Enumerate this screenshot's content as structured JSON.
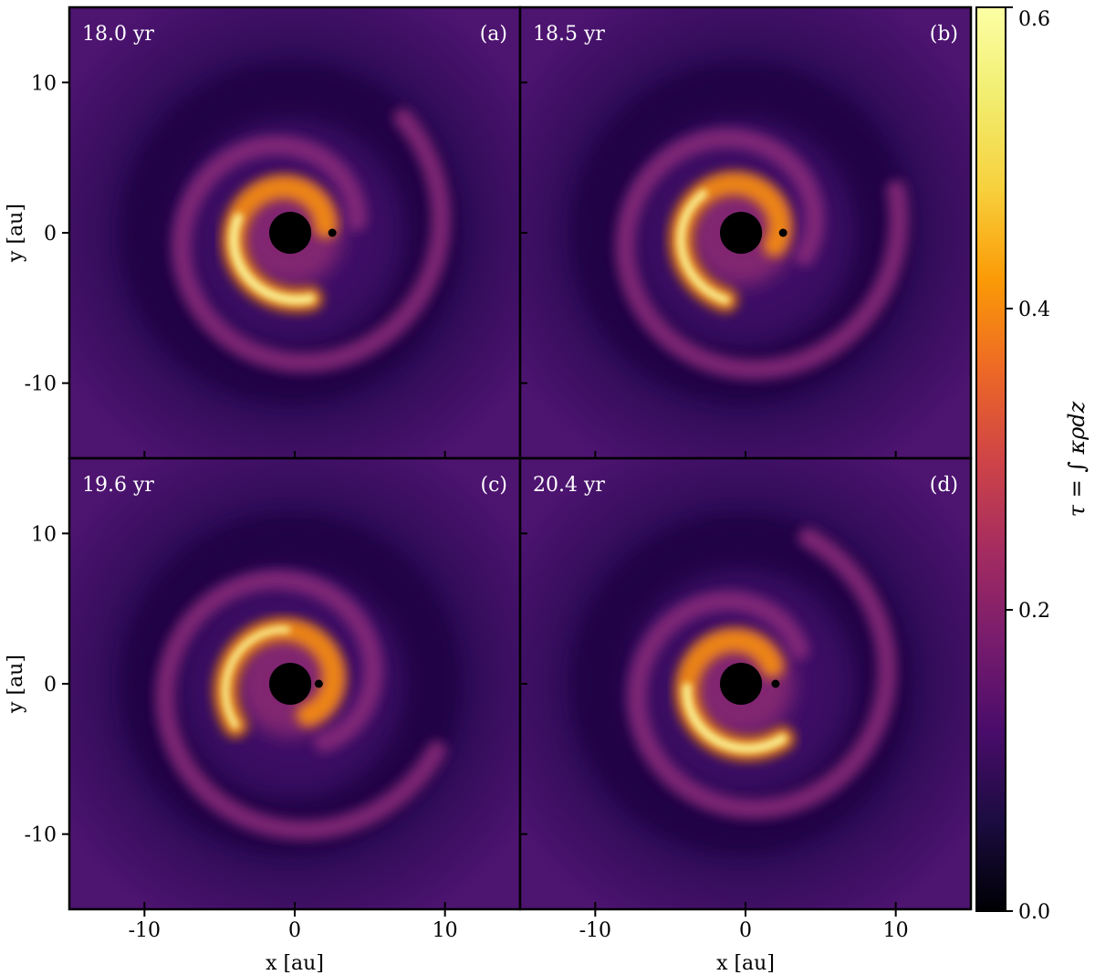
{
  "chart_data": {
    "type": "heatmap",
    "colormap": "inferno",
    "xlabel": "x [au]",
    "ylabel": "y [au]",
    "xlim": [
      -15,
      15
    ],
    "ylim": [
      -15,
      15
    ],
    "x_ticks": [
      -10,
      0,
      10
    ],
    "x_tick_labels": [
      "-10",
      "0",
      "10"
    ],
    "y_ticks": [
      10,
      0,
      -10
    ],
    "y_tick_labels": [
      "10",
      "0",
      "-10"
    ],
    "colorbar": {
      "label": "τ = ∫ κρdz",
      "range": [
        0.0,
        0.6
      ],
      "ticks": [
        0.6,
        0.4,
        0.2,
        0.0
      ],
      "tick_labels": [
        "0.6",
        "0.4",
        "0.2",
        "0.0"
      ]
    },
    "panels": [
      {
        "letter": "(a)",
        "time": "18.0 yr",
        "companion_x": 2.5,
        "arc_start_deg": 10,
        "peak": 0.6
      },
      {
        "letter": "(b)",
        "time": "18.5 yr",
        "companion_x": 2.5,
        "arc_start_deg": -20,
        "peak": 0.52
      },
      {
        "letter": "(c)",
        "time": "19.6 yr",
        "companion_x": 1.6,
        "arc_start_deg": -60,
        "peak": 0.45
      },
      {
        "letter": "(d)",
        "time": "20.4 yr",
        "companion_x": 2.0,
        "arc_start_deg": 30,
        "peak": 0.58
      }
    ],
    "central_star": {
      "x": -0.3,
      "y": 0,
      "radius_au": 1.4
    },
    "grid": false
  },
  "colors": {
    "background_dark": "#3a0f64",
    "ring": "#8a2a7a",
    "arc_bright": "#fcffa4",
    "arc_mid": "#f98e09",
    "star": "#000000"
  }
}
